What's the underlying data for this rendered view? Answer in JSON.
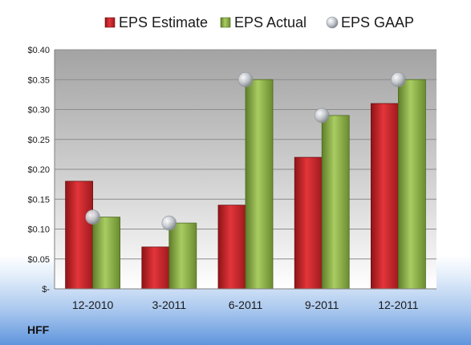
{
  "chart_data": {
    "type": "bar",
    "categories": [
      "12-2010",
      "3-2011",
      "6-2011",
      "9-2011",
      "12-2011"
    ],
    "series": [
      {
        "name": "EPS Estimate",
        "type": "bar",
        "color": "#c0282d",
        "values": [
          0.18,
          0.07,
          0.14,
          0.22,
          0.31
        ]
      },
      {
        "name": "EPS Actual",
        "type": "bar",
        "color": "#8db04a",
        "values": [
          0.12,
          0.11,
          0.35,
          0.29,
          0.35
        ]
      },
      {
        "name": "EPS GAAP",
        "type": "marker",
        "color": "#b8bcc4",
        "values": [
          0.12,
          0.11,
          0.35,
          0.29,
          0.35
        ]
      }
    ],
    "ylim": [
      0,
      0.4
    ],
    "yticks": [
      0,
      0.05,
      0.1,
      0.15,
      0.2,
      0.25,
      0.3,
      0.35,
      0.4
    ],
    "ytick_labels": [
      "$-",
      "$0.05",
      "$0.10",
      "$0.15",
      "$0.20",
      "$0.25",
      "$0.30",
      "$0.35",
      "$0.40"
    ],
    "grid": true,
    "legend_position": "top",
    "ticker": "HFF"
  }
}
